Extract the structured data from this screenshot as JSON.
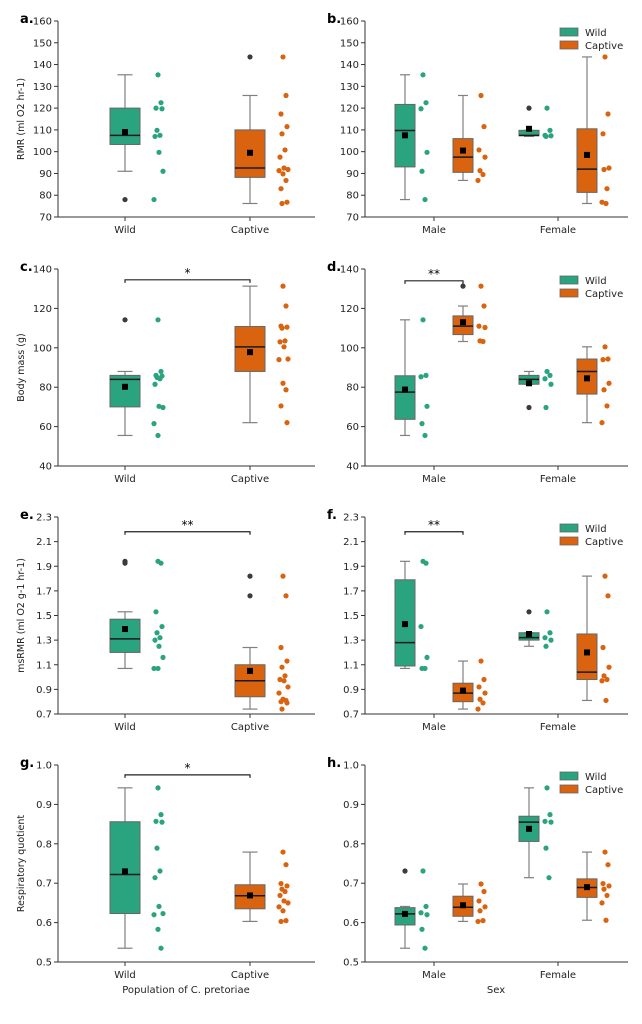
{
  "figure": {
    "colors": {
      "Wild": "#2aa37f",
      "Captive": "#d9630e",
      "outlier": "#3b3b3b",
      "mean": "#000000",
      "whisker": "#808080"
    },
    "legend": [
      "Wild",
      "Captive"
    ]
  },
  "chart_data": [
    {
      "panel": "a.",
      "type": "box",
      "ylabel": "RMR (ml O2 hr-1)",
      "xlabel": "",
      "ylim": [
        70,
        160
      ],
      "yticks": [
        70,
        80,
        90,
        100,
        110,
        120,
        130,
        140,
        150,
        160
      ],
      "categories": [
        "Wild",
        "Captive"
      ],
      "legend": false,
      "grouped": false,
      "boxes": [
        {
          "category": "Wild",
          "group": "Wild",
          "q1": 103.3,
          "median": 107.5,
          "q3": 120.0,
          "whislo": 91.0,
          "whishi": 135.3,
          "mean": 109.0,
          "outliers": [
            78.0
          ],
          "points": [
            135.3,
            122.5,
            120.0,
            119.7,
            109.8,
            107.5,
            107.0,
            99.7,
            91.0,
            78.0
          ]
        },
        {
          "category": "Captive",
          "group": "Captive",
          "q1": 88.2,
          "median": 92.5,
          "q3": 110.0,
          "whislo": 76.2,
          "whishi": 125.8,
          "mean": 99.5,
          "outliers": [
            143.5
          ],
          "points": [
            143.5,
            125.8,
            117.3,
            111.5,
            108.2,
            100.8,
            97.5,
            92.5,
            91.8,
            91.3,
            89.8,
            86.8,
            83.0,
            76.8,
            76.2
          ]
        }
      ],
      "significance": []
    },
    {
      "panel": "b.",
      "type": "box",
      "ylabel": "",
      "xlabel": "",
      "ylim": [
        70,
        160
      ],
      "yticks": [
        70,
        80,
        90,
        100,
        110,
        120,
        130,
        140,
        150,
        160
      ],
      "categories": [
        "Male",
        "Female"
      ],
      "legend": true,
      "grouped": true,
      "boxes": [
        {
          "category": "Male",
          "group": "Wild",
          "q1": 93.0,
          "median": 109.7,
          "q3": 121.7,
          "whislo": 78.0,
          "whishi": 135.3,
          "mean": 107.5,
          "outliers": [],
          "points": [
            135.3,
            122.5,
            119.7,
            99.7,
            91.0,
            78.0
          ]
        },
        {
          "category": "Male",
          "group": "Captive",
          "q1": 90.5,
          "median": 97.5,
          "q3": 106.0,
          "whislo": 86.8,
          "whishi": 125.8,
          "mean": 100.5,
          "outliers": [],
          "points": [
            125.8,
            111.5,
            100.8,
            97.5,
            91.3,
            89.5,
            86.8
          ]
        },
        {
          "category": "Female",
          "group": "Wild",
          "q1": 107.3,
          "median": 107.5,
          "q3": 109.8,
          "whislo": 107.0,
          "whishi": 109.8,
          "mean": 110.5,
          "outliers": [
            120.0
          ],
          "points": [
            120.0,
            109.8,
            107.5,
            107.3,
            107.0
          ]
        },
        {
          "category": "Female",
          "group": "Captive",
          "q1": 81.3,
          "median": 92.0,
          "q3": 110.5,
          "whislo": 76.2,
          "whishi": 143.5,
          "mean": 98.5,
          "outliers": [],
          "points": [
            143.5,
            117.3,
            108.2,
            92.5,
            91.8,
            83.0,
            76.8,
            76.2
          ]
        }
      ],
      "significance": []
    },
    {
      "panel": "c.",
      "type": "box",
      "ylabel": "Body mass (g)",
      "xlabel": "",
      "ylim": [
        40,
        140
      ],
      "yticks": [
        40,
        60,
        80,
        100,
        120,
        140
      ],
      "categories": [
        "Wild",
        "Captive"
      ],
      "legend": false,
      "grouped": false,
      "boxes": [
        {
          "category": "Wild",
          "group": "Wild",
          "q1": 70.0,
          "median": 84.0,
          "q3": 86.0,
          "whislo": 55.5,
          "whishi": 88.0,
          "mean": 80.2,
          "outliers": [
            114.2
          ],
          "points": [
            114.2,
            88.0,
            86.0,
            85.7,
            85.0,
            84.3,
            81.5,
            70.3,
            69.7,
            61.5,
            55.5
          ]
        },
        {
          "category": "Captive",
          "group": "Captive",
          "q1": 88.0,
          "median": 100.5,
          "q3": 110.8,
          "whislo": 62.0,
          "whishi": 131.3,
          "mean": 97.8,
          "outliers": [],
          "points": [
            131.3,
            121.2,
            111.0,
            110.5,
            110.0,
            103.5,
            103.0,
            100.5,
            94.3,
            94.0,
            82.0,
            78.7,
            70.5,
            62.0
          ]
        }
      ],
      "significance": [
        {
          "from": 0,
          "to": 1,
          "label": "*",
          "y": 134.5
        }
      ]
    },
    {
      "panel": "d.",
      "type": "box",
      "ylabel": "",
      "xlabel": "",
      "ylim": [
        40,
        140
      ],
      "yticks": [
        40,
        60,
        80,
        100,
        120,
        140
      ],
      "categories": [
        "Male",
        "Female"
      ],
      "legend": true,
      "grouped": true,
      "boxes": [
        {
          "category": "Male",
          "group": "Wild",
          "q1": 63.7,
          "median": 77.5,
          "q3": 85.8,
          "whislo": 55.5,
          "whishi": 114.2,
          "mean": 78.8,
          "outliers": [],
          "points": [
            114.2,
            86.0,
            85.3,
            70.3,
            61.5,
            55.5
          ]
        },
        {
          "category": "Male",
          "group": "Captive",
          "q1": 106.7,
          "median": 111.0,
          "q3": 116.2,
          "whislo": 103.2,
          "whishi": 121.2,
          "mean": 113.0,
          "outliers": [
            131.3
          ],
          "points": [
            131.3,
            121.2,
            111.0,
            110.3,
            103.5,
            103.2
          ]
        },
        {
          "category": "Female",
          "group": "Wild",
          "q1": 81.5,
          "median": 84.0,
          "q3": 86.0,
          "whislo": 81.5,
          "whishi": 88.0,
          "mean": 82.0,
          "outliers": [
            69.7
          ],
          "points": [
            88.0,
            86.0,
            84.3,
            81.5,
            69.7
          ]
        },
        {
          "category": "Female",
          "group": "Captive",
          "q1": 76.5,
          "median": 88.0,
          "q3": 94.3,
          "whislo": 62.0,
          "whishi": 100.5,
          "mean": 84.5,
          "outliers": [],
          "points": [
            100.5,
            94.3,
            94.0,
            82.0,
            78.7,
            70.5,
            62.0
          ]
        }
      ],
      "significance": [
        {
          "category": "Male",
          "label": "**",
          "y": 134.0
        }
      ]
    },
    {
      "panel": "e.",
      "type": "box",
      "ylabel": "msRMR (ml O2 g-1 hr-1)",
      "xlabel": "",
      "ylim": [
        0.7,
        2.3
      ],
      "yticks": [
        0.7,
        0.9,
        1.1,
        1.3,
        1.5,
        1.7,
        1.9,
        2.1,
        2.3
      ],
      "categories": [
        "Wild",
        "Captive"
      ],
      "legend": false,
      "grouped": false,
      "boxes": [
        {
          "category": "Wild",
          "group": "Wild",
          "q1": 1.2,
          "median": 1.31,
          "q3": 1.47,
          "whislo": 1.07,
          "whishi": 1.53,
          "mean": 1.39,
          "outliers": [
            1.94,
            1.925
          ],
          "points": [
            1.94,
            1.925,
            1.53,
            1.41,
            1.36,
            1.32,
            1.3,
            1.25,
            1.16,
            1.07,
            1.07
          ]
        },
        {
          "category": "Captive",
          "group": "Captive",
          "q1": 0.84,
          "median": 0.97,
          "q3": 1.1,
          "whislo": 0.74,
          "whishi": 1.24,
          "mean": 1.05,
          "outliers": [
            1.82,
            1.66
          ],
          "points": [
            1.82,
            1.66,
            1.24,
            1.13,
            1.08,
            1.01,
            0.98,
            0.97,
            0.92,
            0.87,
            0.82,
            0.81,
            0.8,
            0.79,
            0.74
          ]
        }
      ],
      "significance": [
        {
          "from": 0,
          "to": 1,
          "label": "**",
          "y": 2.18
        }
      ]
    },
    {
      "panel": "f.",
      "type": "box",
      "ylabel": "",
      "xlabel": "",
      "ylim": [
        0.7,
        2.3
      ],
      "yticks": [
        0.7,
        0.9,
        1.1,
        1.3,
        1.5,
        1.7,
        1.9,
        2.1,
        2.3
      ],
      "categories": [
        "Male",
        "Female"
      ],
      "legend": true,
      "grouped": true,
      "boxes": [
        {
          "category": "Male",
          "group": "Wild",
          "q1": 1.09,
          "median": 1.28,
          "q3": 1.79,
          "whislo": 1.07,
          "whishi": 1.94,
          "mean": 1.43,
          "outliers": [],
          "points": [
            1.94,
            1.925,
            1.41,
            1.16,
            1.07,
            1.07
          ]
        },
        {
          "category": "Male",
          "group": "Captive",
          "q1": 0.8,
          "median": 0.87,
          "q3": 0.95,
          "whislo": 0.74,
          "whishi": 1.13,
          "mean": 0.89,
          "outliers": [],
          "points": [
            1.13,
            0.98,
            0.92,
            0.87,
            0.82,
            0.79,
            0.74
          ]
        },
        {
          "category": "Female",
          "group": "Wild",
          "q1": 1.3,
          "median": 1.32,
          "q3": 1.36,
          "whislo": 1.25,
          "whishi": 1.36,
          "mean": 1.35,
          "outliers": [
            1.53
          ],
          "points": [
            1.53,
            1.36,
            1.32,
            1.3,
            1.25
          ]
        },
        {
          "category": "Female",
          "group": "Captive",
          "q1": 0.98,
          "median": 1.04,
          "q3": 1.35,
          "whislo": 0.81,
          "whishi": 1.82,
          "mean": 1.2,
          "outliers": [],
          "points": [
            1.82,
            1.66,
            1.24,
            1.08,
            1.01,
            0.98,
            0.97,
            0.81
          ]
        }
      ],
      "significance": [
        {
          "category": "Male",
          "label": "**",
          "y": 2.18
        }
      ]
    },
    {
      "panel": "g.",
      "type": "box",
      "ylabel": "Respiratory quotient",
      "xlabel": "Population of C. pretoriae",
      "ylim": [
        0.5,
        1.0
      ],
      "yticks": [
        0.5,
        0.6,
        0.7,
        0.8,
        0.9,
        1.0
      ],
      "categories": [
        "Wild",
        "Captive"
      ],
      "legend": false,
      "grouped": false,
      "boxes": [
        {
          "category": "Wild",
          "group": "Wild",
          "q1": 0.623,
          "median": 0.722,
          "q3": 0.856,
          "whislo": 0.535,
          "whishi": 0.942,
          "mean": 0.73,
          "outliers": [],
          "points": [
            0.942,
            0.874,
            0.857,
            0.855,
            0.789,
            0.731,
            0.714,
            0.641,
            0.623,
            0.62,
            0.583,
            0.535
          ]
        },
        {
          "category": "Captive",
          "group": "Captive",
          "q1": 0.635,
          "median": 0.668,
          "q3": 0.696,
          "whislo": 0.603,
          "whishi": 0.779,
          "mean": 0.669,
          "outliers": [],
          "points": [
            0.779,
            0.747,
            0.699,
            0.693,
            0.685,
            0.679,
            0.669,
            0.655,
            0.65,
            0.64,
            0.63,
            0.605,
            0.603
          ]
        }
      ],
      "significance": [
        {
          "from": 0,
          "to": 1,
          "label": "*",
          "y": 0.975
        }
      ]
    },
    {
      "panel": "h.",
      "type": "box",
      "ylabel": "",
      "xlabel": "Sex",
      "ylim": [
        0.5,
        1.0
      ],
      "yticks": [
        0.5,
        0.6,
        0.7,
        0.8,
        0.9,
        1.0
      ],
      "categories": [
        "Male",
        "Female"
      ],
      "legend": true,
      "grouped": true,
      "boxes": [
        {
          "category": "Male",
          "group": "Wild",
          "q1": 0.594,
          "median": 0.622,
          "q3": 0.638,
          "whislo": 0.535,
          "whishi": 0.641,
          "mean": 0.622,
          "outliers": [
            0.731
          ],
          "points": [
            0.731,
            0.641,
            0.625,
            0.62,
            0.583,
            0.535
          ]
        },
        {
          "category": "Male",
          "group": "Captive",
          "q1": 0.616,
          "median": 0.639,
          "q3": 0.667,
          "whislo": 0.603,
          "whishi": 0.698,
          "mean": 0.644,
          "outliers": [],
          "points": [
            0.698,
            0.679,
            0.655,
            0.64,
            0.63,
            0.605,
            0.603
          ]
        },
        {
          "category": "Female",
          "group": "Wild",
          "q1": 0.806,
          "median": 0.855,
          "q3": 0.87,
          "whislo": 0.714,
          "whishi": 0.942,
          "mean": 0.838,
          "outliers": [],
          "points": [
            0.942,
            0.874,
            0.857,
            0.855,
            0.789,
            0.714
          ]
        },
        {
          "category": "Female",
          "group": "Captive",
          "q1": 0.664,
          "median": 0.689,
          "q3": 0.711,
          "whislo": 0.606,
          "whishi": 0.779,
          "mean": 0.69,
          "outliers": [],
          "points": [
            0.779,
            0.747,
            0.699,
            0.693,
            0.685,
            0.669,
            0.65,
            0.606
          ]
        }
      ],
      "significance": []
    }
  ]
}
